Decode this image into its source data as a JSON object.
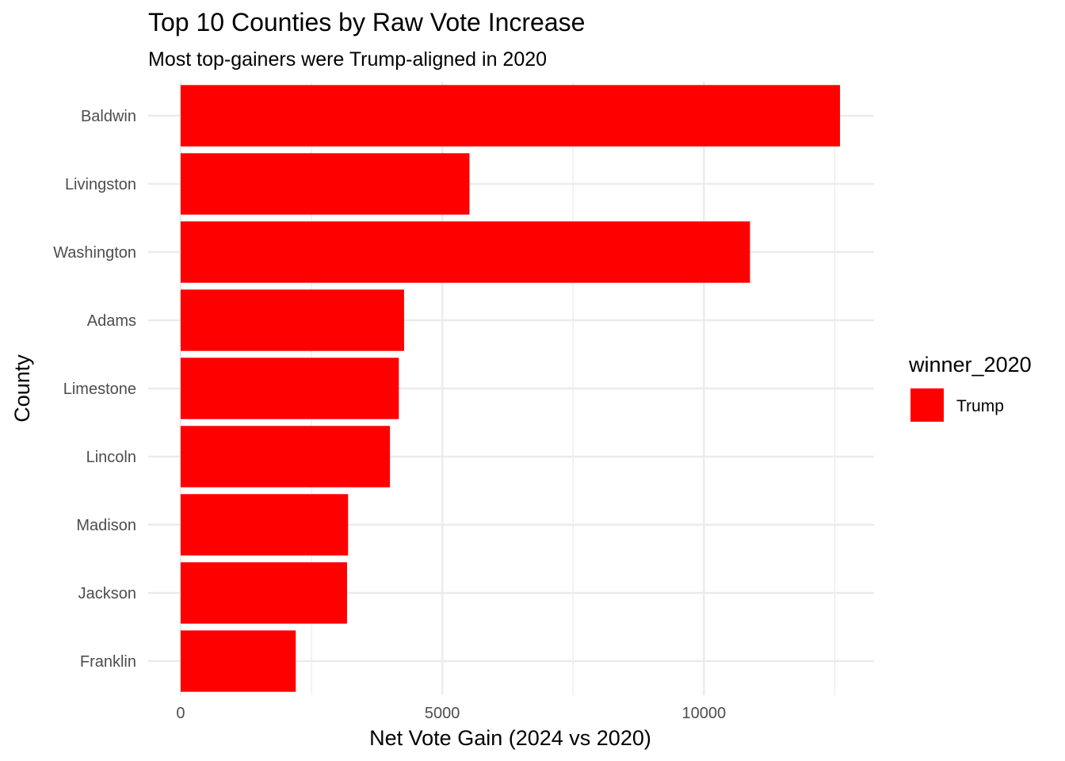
{
  "chart_data": {
    "type": "bar",
    "orientation": "horizontal",
    "title": "Top 10 Counties by Raw Vote Increase",
    "subtitle": "Most top-gainers were Trump-aligned in 2020",
    "xlabel": "Net Vote Gain (2024 vs 2020)",
    "ylabel": "County",
    "categories": [
      "Baldwin",
      "Livingston",
      "Washington",
      "Adams",
      "Limestone",
      "Lincoln",
      "Madison",
      "Jackson",
      "Franklin"
    ],
    "values": [
      12600,
      5520,
      10880,
      4270,
      4170,
      4000,
      3200,
      3180,
      2200
    ],
    "fill_groups": [
      "Trump",
      "Trump",
      "Trump",
      "Trump",
      "Trump",
      "Trump",
      "Trump",
      "Trump",
      "Trump"
    ],
    "xlim": [
      -620,
      13250
    ],
    "x_ticks": [
      0,
      5000,
      10000
    ],
    "x_tick_labels": [
      "0",
      "5000",
      "10000"
    ],
    "grid": true,
    "legend": {
      "title": "winner_2020",
      "position": "right",
      "entries": [
        {
          "label": "Trump",
          "color": "#FF0000"
        }
      ]
    }
  }
}
